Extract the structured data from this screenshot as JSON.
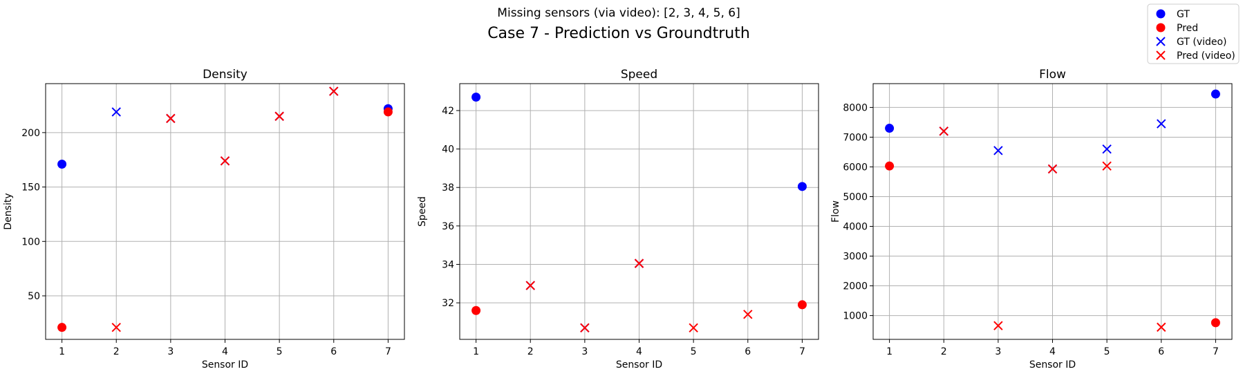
{
  "figure": {
    "subtitle": "Missing sensors (via video): [2, 3, 4, 5, 6]",
    "title": "Case 7 - Prediction vs Groundtruth"
  },
  "legend": {
    "placement": "top-right",
    "entries": [
      {
        "label": "GT",
        "marker": "circle",
        "color": "#0000ff"
      },
      {
        "label": "Pred",
        "marker": "circle",
        "color": "#ff0000"
      },
      {
        "label": "GT (video)",
        "marker": "x",
        "color": "#0000ff"
      },
      {
        "label": "Pred (video)",
        "marker": "x",
        "color": "#ff0000"
      }
    ]
  },
  "colors": {
    "gt": "#0000ff",
    "pred": "#ff0000",
    "grid": "#b0b0b0"
  },
  "chart_data": [
    {
      "type": "scatter",
      "title": "Density",
      "xlabel": "Sensor ID",
      "ylabel": "Density",
      "xlim": [
        0.7,
        7.3
      ],
      "ylim": [
        10,
        245
      ],
      "xticks": [
        1,
        2,
        3,
        4,
        5,
        6,
        7
      ],
      "yticks": [
        50,
        100,
        150,
        200
      ],
      "grid": true,
      "series": [
        {
          "name": "GT",
          "marker": "circle",
          "color": "#0000ff",
          "points": [
            [
              1,
              171
            ],
            [
              7,
              222
            ]
          ]
        },
        {
          "name": "Pred",
          "marker": "circle",
          "color": "#ff0000",
          "points": [
            [
              1,
              21
            ],
            [
              7,
              219
            ]
          ]
        },
        {
          "name": "GT (video)",
          "marker": "x",
          "color": "#0000ff",
          "points": [
            [
              2,
              219
            ],
            [
              3,
              213
            ],
            [
              4,
              174
            ],
            [
              5,
              215
            ],
            [
              6,
              238
            ]
          ]
        },
        {
          "name": "Pred (video)",
          "marker": "x",
          "color": "#ff0000",
          "points": [
            [
              2,
              21
            ],
            [
              3,
              213
            ],
            [
              4,
              174
            ],
            [
              5,
              215
            ],
            [
              6,
              238
            ]
          ]
        }
      ]
    },
    {
      "type": "scatter",
      "title": "Speed",
      "xlabel": "Sensor ID",
      "ylabel": "Speed",
      "xlim": [
        0.7,
        7.3
      ],
      "ylim": [
        30.1,
        43.4
      ],
      "xticks": [
        1,
        2,
        3,
        4,
        5,
        6,
        7
      ],
      "yticks": [
        32,
        34,
        36,
        38,
        40,
        42
      ],
      "grid": true,
      "series": [
        {
          "name": "GT",
          "marker": "circle",
          "color": "#0000ff",
          "points": [
            [
              1,
              42.7
            ],
            [
              7,
              38.05
            ]
          ]
        },
        {
          "name": "Pred",
          "marker": "circle",
          "color": "#ff0000",
          "points": [
            [
              1,
              31.6
            ],
            [
              7,
              31.9
            ]
          ]
        },
        {
          "name": "GT (video)",
          "marker": "x",
          "color": "#0000ff",
          "points": [
            [
              2,
              32.9
            ],
            [
              3,
              30.7
            ],
            [
              4,
              34.05
            ]
          ]
        },
        {
          "name": "Pred (video)",
          "marker": "x",
          "color": "#ff0000",
          "points": [
            [
              2,
              32.9
            ],
            [
              3,
              30.7
            ],
            [
              4,
              34.05
            ],
            [
              5,
              30.7
            ],
            [
              6,
              31.4
            ]
          ]
        }
      ]
    },
    {
      "type": "scatter",
      "title": "Flow",
      "xlabel": "Sensor ID",
      "ylabel": "Flow",
      "xlim": [
        0.7,
        7.3
      ],
      "ylim": [
        200,
        8800
      ],
      "xticks": [
        1,
        2,
        3,
        4,
        5,
        6,
        7
      ],
      "yticks": [
        1000,
        2000,
        3000,
        4000,
        5000,
        6000,
        7000,
        8000
      ],
      "grid": true,
      "series": [
        {
          "name": "GT",
          "marker": "circle",
          "color": "#0000ff",
          "points": [
            [
              1,
              7300
            ],
            [
              7,
              8450
            ]
          ]
        },
        {
          "name": "Pred",
          "marker": "circle",
          "color": "#ff0000",
          "points": [
            [
              1,
              6030
            ],
            [
              7,
              760
            ]
          ]
        },
        {
          "name": "GT (video)",
          "marker": "x",
          "color": "#0000ff",
          "points": [
            [
              2,
              7200
            ],
            [
              3,
              6550
            ],
            [
              4,
              5930
            ],
            [
              5,
              6600
            ],
            [
              6,
              7450
            ]
          ]
        },
        {
          "name": "Pred (video)",
          "marker": "x",
          "color": "#ff0000",
          "points": [
            [
              2,
              7200
            ],
            [
              3,
              660
            ],
            [
              4,
              5930
            ],
            [
              5,
              6030
            ],
            [
              6,
              610
            ]
          ]
        }
      ]
    }
  ]
}
